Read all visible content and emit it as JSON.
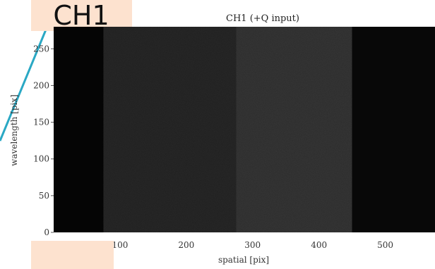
{
  "slide": {
    "accent_color": "#2aa8c4",
    "badge_color": "#fde2cf",
    "channel_badge": "CH1"
  },
  "chart_data": {
    "type": "heatmap",
    "title": "CH1 (+Q input)",
    "xlabel": "spatial [pix]",
    "ylabel": "wavelength [pix]",
    "xlim": [
      0,
      575
    ],
    "ylim": [
      0,
      280
    ],
    "xticks": [
      0,
      100,
      200,
      300,
      400,
      500
    ],
    "yticks": [
      0,
      50,
      100,
      150,
      200,
      250
    ],
    "colormap": "gray",
    "grid": false,
    "background_level": 0.05,
    "spatial_bands": [
      {
        "x_start": 0,
        "x_end": 75,
        "level": 0.02
      },
      {
        "x_start": 75,
        "x_end": 275,
        "level": 0.12
      },
      {
        "x_start": 275,
        "x_end": 450,
        "level": 0.17
      },
      {
        "x_start": 450,
        "x_end": 575,
        "level": 0.03
      }
    ]
  }
}
